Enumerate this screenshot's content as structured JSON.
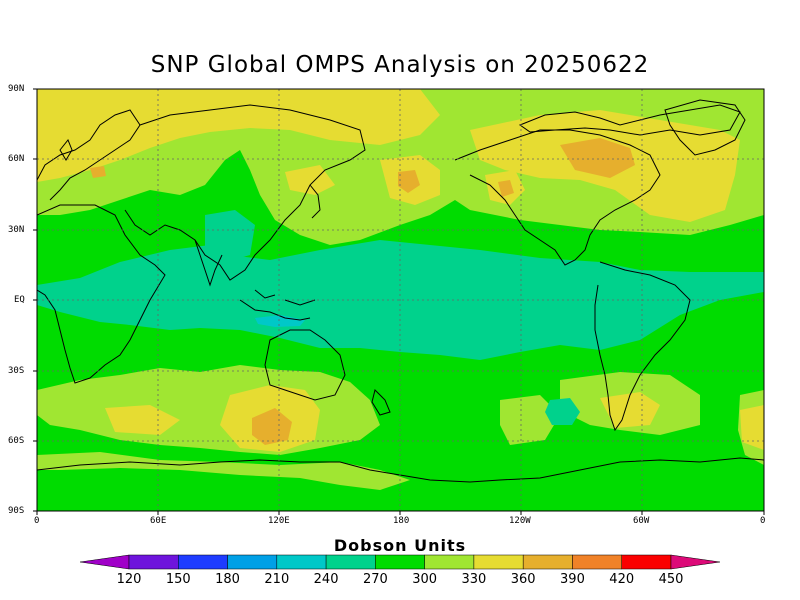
{
  "title": "SNP Global OMPS Analysis on 20250622",
  "lat_labels": [
    "90N",
    "60N",
    "30N",
    "EQ",
    "30S",
    "60S",
    "90S"
  ],
  "lon_labels": [
    "0",
    "60E",
    "120E",
    "180",
    "120W",
    "60W",
    "0"
  ],
  "colorbar": {
    "title": "Dobson Units",
    "labels": [
      "120",
      "150",
      "180",
      "210",
      "240",
      "270",
      "300",
      "330",
      "360",
      "390",
      "420",
      "450"
    ],
    "colors": [
      "#a000c8",
      "#6e14dc",
      "#1e3cff",
      "#00a0e6",
      "#00c8c8",
      "#00d28c",
      "#00dc00",
      "#a0e632",
      "#e6dc32",
      "#e6af2d",
      "#f08228",
      "#fa0000",
      "#dc0a78"
    ]
  },
  "legend_colors": {
    "c300": "#00dc00",
    "c330": "#a0e632",
    "c360": "#e6dc32",
    "c390": "#e6af2d",
    "c270": "#00d28c"
  }
}
